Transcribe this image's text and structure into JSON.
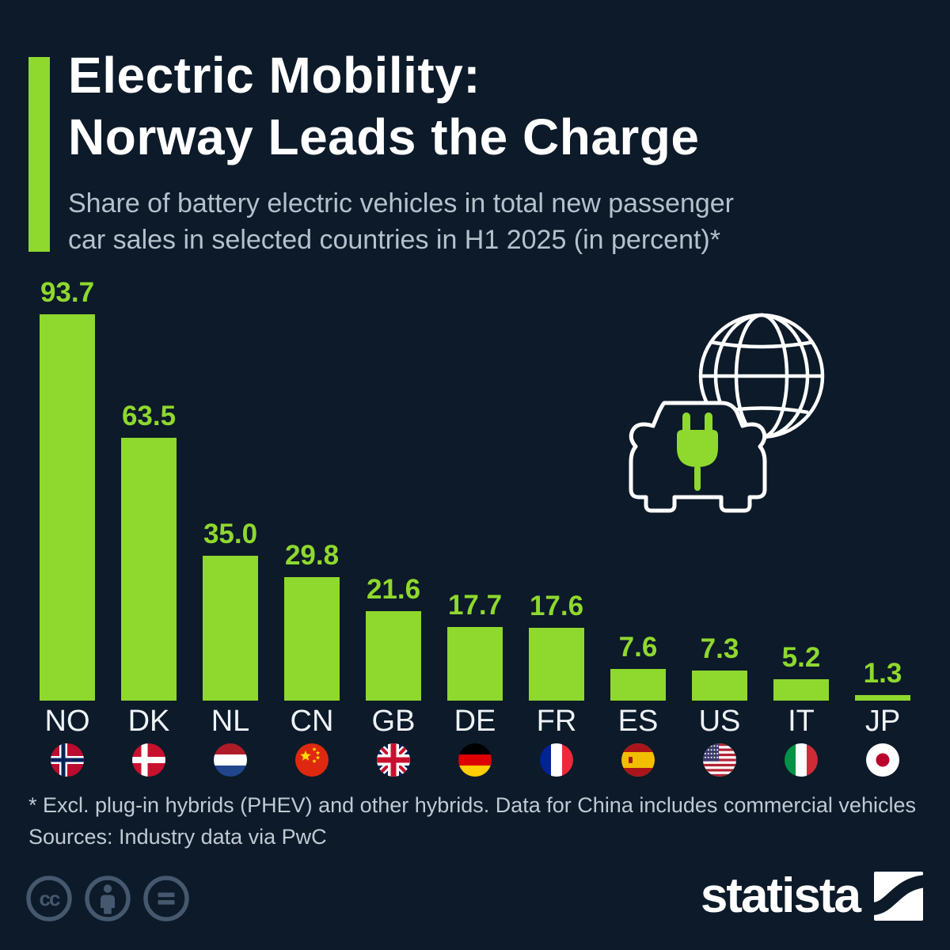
{
  "header": {
    "title_line1": "Electric Mobility:",
    "title_line2": "Norway Leads the Charge",
    "subtitle_line1": "Share of battery electric vehicles in total new passenger",
    "subtitle_line2": "car sales in selected countries in H1 2025 (in percent)*"
  },
  "chart_data": {
    "type": "bar",
    "title": "Share of battery electric vehicles in total new passenger car sales in selected countries in H1 2025 (in percent)",
    "unit": "percent",
    "categories": [
      "NO",
      "DK",
      "NL",
      "CN",
      "GB",
      "DE",
      "FR",
      "ES",
      "US",
      "IT",
      "JP"
    ],
    "values": [
      93.7,
      63.5,
      35.0,
      29.8,
      21.6,
      17.7,
      17.6,
      7.6,
      7.3,
      5.2,
      1.3
    ],
    "value_labels": [
      "93.7",
      "63.5",
      "35.0",
      "29.8",
      "21.6",
      "17.7",
      "17.6",
      "7.6",
      "7.3",
      "5.2",
      "1.3"
    ],
    "country_flags": [
      "flag-norway",
      "flag-denmark",
      "flag-netherlands",
      "flag-china",
      "flag-united-kingdom",
      "flag-germany",
      "flag-france",
      "flag-spain",
      "flag-united-states",
      "flag-italy",
      "flag-japan"
    ],
    "bar_color": "#8fd82e",
    "background_color": "#0c1a29",
    "ylim": [
      0,
      100
    ],
    "grid": false,
    "legend_position": "none"
  },
  "footer": {
    "footnote": "* Excl. plug-in hybrids (PHEV) and other hybrids. Data for China includes commercial vehicles",
    "sources": "Sources: Industry data via PwC"
  },
  "branding": {
    "logo_text": "statista",
    "license_icons": [
      "cc-icon",
      "cc-by-person-icon",
      "cc-nd-equals-icon"
    ]
  },
  "colors": {
    "accent_green": "#8fd82e",
    "background": "#0c1a29",
    "title": "#ffffff",
    "subtitle": "#b5c1cc",
    "country_label": "#eef3f7",
    "footnote": "#c0cad4",
    "license_icon": "#46586d"
  }
}
